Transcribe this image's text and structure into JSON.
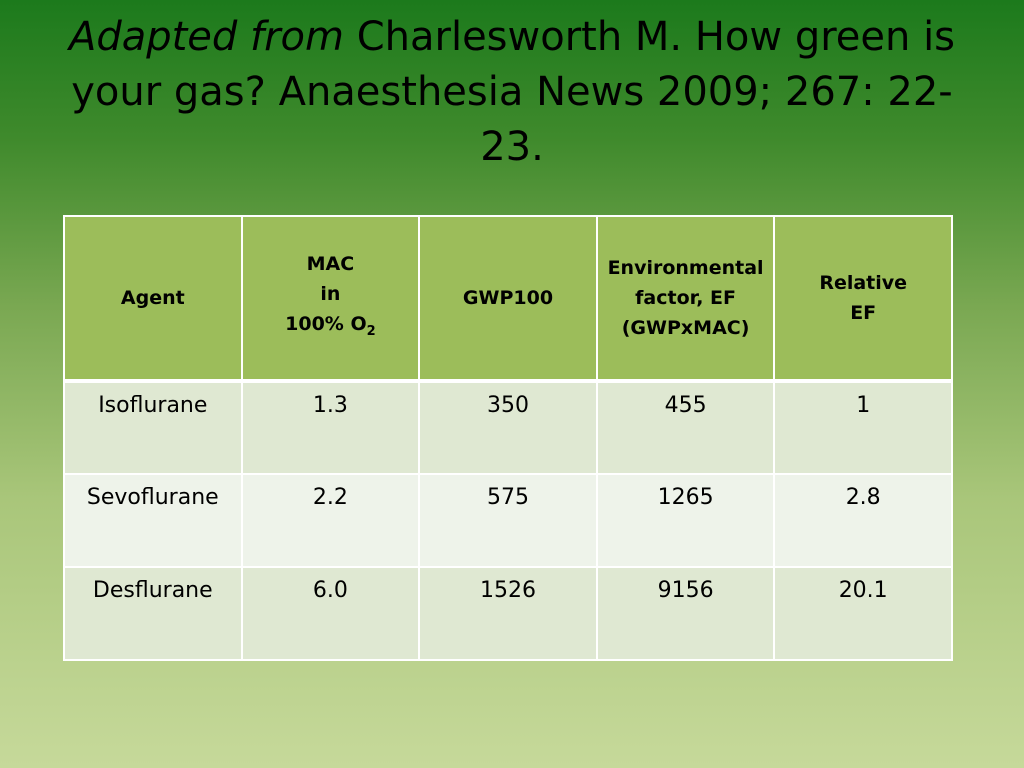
{
  "title": {
    "italic_part": "Adapted from",
    "rest": " Charlesworth M. How green is your gas? Anaesthesia News 2009; 267: 22-23."
  },
  "table": {
    "headers": {
      "agent": "Agent",
      "mac_line1": "MAC",
      "mac_line2": "in",
      "mac_line3": "100% O",
      "mac_sub": "2",
      "gwp": "GWP100",
      "ef_line1": "Environmental",
      "ef_line2": "factor, EF",
      "ef_line3": "(GWPxMAC)",
      "rel_line1": "Relative",
      "rel_line2": "EF"
    },
    "rows": [
      {
        "agent": "Isoflurane",
        "mac": "1.3",
        "gwp": "350",
        "ef": "455",
        "rel": "1"
      },
      {
        "agent": "Sevoflurane",
        "mac": "2.2",
        "gwp": "575",
        "ef": "1265",
        "rel": "2.8"
      },
      {
        "agent": "Desflurane",
        "mac": "6.0",
        "gwp": "1526",
        "ef": "9156",
        "rel": "20.1"
      }
    ]
  }
}
